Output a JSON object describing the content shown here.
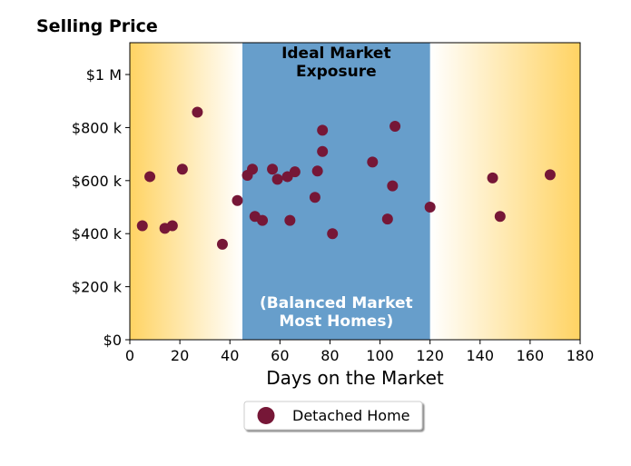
{
  "chart_data": {
    "type": "scatter",
    "title": "Selling Price",
    "xlabel": "Days on the Market",
    "ylabel": "",
    "xlim": [
      0,
      180
    ],
    "ylim": [
      0,
      1120000
    ],
    "x_ticks": [
      0,
      20,
      40,
      60,
      80,
      100,
      120,
      140,
      160,
      180
    ],
    "x_tick_labels": [
      "0",
      "20",
      "40",
      "60",
      "80",
      "100",
      "120",
      "140",
      "160",
      "180"
    ],
    "y_ticks": [
      0,
      200000,
      400000,
      600000,
      800000,
      1000000
    ],
    "y_tick_labels": [
      "$0",
      "$200 k",
      "$400 k",
      "$600 k",
      "$800 k",
      "$1 M"
    ],
    "grid": false,
    "legend_placement": "bottom-center",
    "band": {
      "x_range": [
        45,
        120
      ],
      "color": "#679ecb",
      "top_label_line1": "Ideal Market",
      "top_label_line2": "Exposure",
      "bottom_label_line1": "(Balanced Market",
      "bottom_label_line2": "Most Homes)"
    },
    "gradient_color": "#ffd363",
    "series": [
      {
        "name": "Detached Home",
        "color": "#761737",
        "points": [
          {
            "x": 5,
            "y": 430000
          },
          {
            "x": 8,
            "y": 615000
          },
          {
            "x": 14,
            "y": 420000
          },
          {
            "x": 17,
            "y": 430000
          },
          {
            "x": 21,
            "y": 643000
          },
          {
            "x": 27,
            "y": 858000
          },
          {
            "x": 37,
            "y": 360000
          },
          {
            "x": 43,
            "y": 525000
          },
          {
            "x": 47,
            "y": 620000
          },
          {
            "x": 49,
            "y": 643000
          },
          {
            "x": 50,
            "y": 465000
          },
          {
            "x": 53,
            "y": 450000
          },
          {
            "x": 57,
            "y": 643000
          },
          {
            "x": 59,
            "y": 605000
          },
          {
            "x": 63,
            "y": 615000
          },
          {
            "x": 64,
            "y": 450000
          },
          {
            "x": 66,
            "y": 633000
          },
          {
            "x": 74,
            "y": 537000
          },
          {
            "x": 75,
            "y": 636000
          },
          {
            "x": 77,
            "y": 790000
          },
          {
            "x": 77,
            "y": 710000
          },
          {
            "x": 81,
            "y": 400000
          },
          {
            "x": 97,
            "y": 670000
          },
          {
            "x": 103,
            "y": 455000
          },
          {
            "x": 105,
            "y": 580000
          },
          {
            "x": 106,
            "y": 805000
          },
          {
            "x": 120,
            "y": 500000
          },
          {
            "x": 145,
            "y": 610000
          },
          {
            "x": 148,
            "y": 465000
          },
          {
            "x": 168,
            "y": 622000
          }
        ]
      }
    ]
  }
}
